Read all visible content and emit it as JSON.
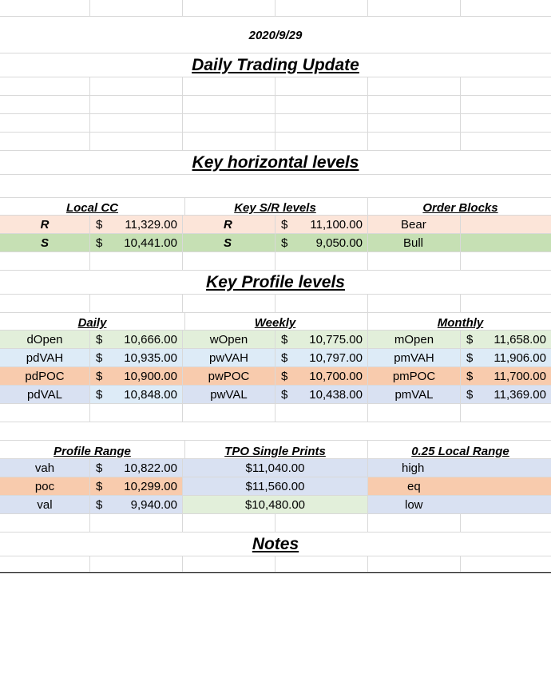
{
  "date": "2020/9/29",
  "title": "Daily Trading Update",
  "sections": {
    "horizontal": "Key horizontal levels",
    "profile": "Key Profile levels",
    "notes": "Notes"
  },
  "local_cc": {
    "header": "Local CC",
    "r_label": "R",
    "r_cur": "$",
    "r_val": "11,329.00",
    "s_label": "S",
    "s_cur": "$",
    "s_val": "10,441.00"
  },
  "key_sr": {
    "header": "Key S/R levels",
    "r_label": "R",
    "r_cur": "$",
    "r_val": "11,100.00",
    "s_label": "S",
    "s_cur": "$",
    "s_val": "9,050.00"
  },
  "order_blocks": {
    "header": "Order Blocks",
    "bear": "Bear",
    "bull": "Bull"
  },
  "daily": {
    "header": "Daily",
    "rows": [
      {
        "label": "dOpen",
        "cur": "$",
        "val": "10,666.00"
      },
      {
        "label": "pdVAH",
        "cur": "$",
        "val": "10,935.00"
      },
      {
        "label": "pdPOC",
        "cur": "$",
        "val": "10,900.00"
      },
      {
        "label": "pdVAL",
        "cur": "$",
        "val": "10,848.00"
      }
    ]
  },
  "weekly": {
    "header": "Weekly",
    "rows": [
      {
        "label": "wOpen",
        "cur": "$",
        "val": "10,775.00"
      },
      {
        "label": "pwVAH",
        "cur": "$",
        "val": "10,797.00"
      },
      {
        "label": "pwPOC",
        "cur": "$",
        "val": "10,700.00"
      },
      {
        "label": "pwVAL",
        "cur": "$",
        "val": "10,438.00"
      }
    ]
  },
  "monthly": {
    "header": "Monthly",
    "rows": [
      {
        "label": "mOpen",
        "cur": "$",
        "val": "11,658.00"
      },
      {
        "label": "pmVAH",
        "cur": "$",
        "val": "11,906.00"
      },
      {
        "label": "pmPOC",
        "cur": "$",
        "val": "11,700.00"
      },
      {
        "label": "pmVAL",
        "cur": "$",
        "val": "11,369.00"
      }
    ]
  },
  "profile_range": {
    "header": "Profile Range",
    "rows": [
      {
        "label": "vah",
        "cur": "$",
        "val": "10,822.00"
      },
      {
        "label": "poc",
        "cur": "$",
        "val": "10,299.00"
      },
      {
        "label": "val",
        "cur": "$",
        "val": "9,940.00"
      }
    ]
  },
  "tpo": {
    "header": "TPO Single Prints",
    "values": [
      "$11,040.00",
      "$11,560.00",
      "$10,480.00"
    ]
  },
  "local_range": {
    "header": "0.25 Local Range",
    "labels": [
      "high",
      "eq",
      "low"
    ]
  }
}
